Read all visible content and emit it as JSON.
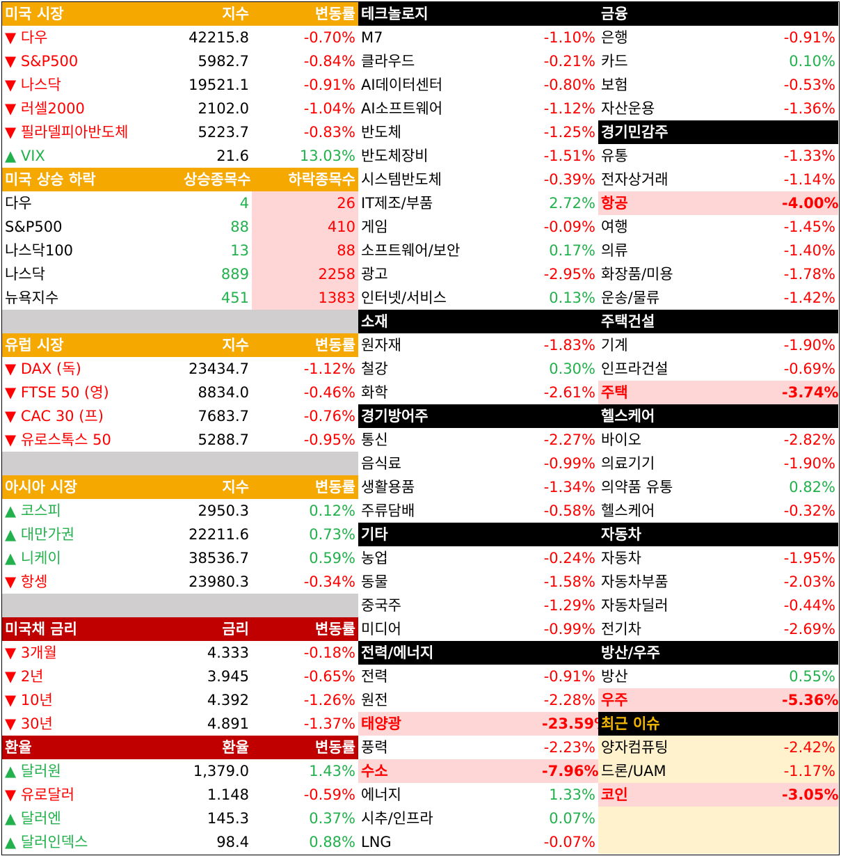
{
  "left": [
    {
      "header": [
        "미국 시장",
        "지수",
        "변동률"
      ],
      "header_color": "#f5a800",
      "header_text_color": "#ffffff",
      "rows": [
        [
          "▼ 다우",
          "42215.8",
          "-0.70%"
        ],
        [
          "▼ S&P500",
          "5982.7",
          "-0.84%"
        ],
        [
          "▼ 나스닥",
          "19521.1",
          "-0.91%"
        ],
        [
          "▼ 러셀2000",
          "2102.0",
          "-1.04%"
        ],
        [
          "▼ 필라델피아반도체",
          "5223.7",
          "-0.83%"
        ],
        [
          "▲ VIX",
          "21.6",
          "13.03%"
        ]
      ]
    },
    {
      "header": [
        "미국 상승 하락",
        "상승종목수",
        "하락종목수"
      ],
      "header_color": "#f5a800",
      "header_text_color": "#ffffff",
      "value_colors": [
        "#000000",
        "#22b14c",
        "#ff0000"
      ],
      "value_backgrounds": [
        "#ffffff",
        "#ffffff",
        "#ffd6d6"
      ],
      "rows": [
        [
          "다우",
          "4",
          "26"
        ],
        [
          "S&P500",
          "88",
          "410"
        ],
        [
          "나스닥100",
          "13",
          "88"
        ],
        [
          "나스닥",
          "889",
          "2258"
        ],
        [
          "뉴욕지수",
          "451",
          "1383"
        ]
      ]
    },
    {
      "header": [
        "유럽 시장",
        "지수",
        "변동률"
      ],
      "header_color": "#f5a800",
      "header_text_color": "#ffffff",
      "rows": [
        [
          "▼ DAX (독)",
          "23434.7",
          "-1.12%"
        ],
        [
          "▼ FTSE 50 (영)",
          "8834.0",
          "-0.46%"
        ],
        [
          "▼ CAC 30 (프)",
          "7683.7",
          "-0.76%"
        ],
        [
          "▼ 유로스톡스 50",
          "5288.7",
          "-0.95%"
        ]
      ]
    },
    {
      "header": [
        "아시아 시장",
        "지수",
        "변동률"
      ],
      "header_color": "#f5a800",
      "header_text_color": "#ffffff",
      "rows": [
        [
          "▲ 코스피",
          "2950.3",
          "0.12%"
        ],
        [
          "▲ 대만가권",
          "22211.6",
          "0.73%"
        ],
        [
          "▲ 니케이",
          "38536.7",
          "0.59%"
        ],
        [
          "▼ 항셍",
          "23980.3",
          "-0.34%"
        ]
      ]
    },
    {
      "header": [
        "미국채 금리",
        "금리",
        "변동률"
      ],
      "header_color": "#c00000",
      "header_text_color": "#ffffff",
      "rows": [
        [
          "▼ 3개월",
          "4.333",
          "-0.18%"
        ],
        [
          "▼ 2년",
          "3.945",
          "-0.65%"
        ],
        [
          "▼ 10년",
          "4.392",
          "-1.26%"
        ],
        [
          "▼ 30년",
          "4.891",
          "-1.37%"
        ]
      ]
    },
    {
      "header": [
        "환율",
        "환율",
        "변동률"
      ],
      "header_color": "#c00000",
      "header_text_color": "#ffffff",
      "rows": [
        [
          "▲ 달러원",
          "1,379.0",
          "1.43%"
        ],
        [
          "▼ 유로달러",
          "1.148",
          "-0.59%"
        ],
        [
          "▲ 달러엔",
          "145.3",
          "0.37%"
        ],
        [
          "▲ 달러인덱스",
          "98.4",
          "0.88%"
        ]
      ]
    }
  ],
  "middle": [
    {
      "header": "테크놀로지",
      "header_color": "#000000",
      "header_text_color": "#ffffff",
      "rows": [
        [
          "M7",
          "-1.10%"
        ],
        [
          "클라우드",
          "-0.21%"
        ],
        [
          "AI데이터센터",
          "-0.80%"
        ],
        [
          "AI소프트웨어",
          "-1.12%"
        ],
        [
          "반도체",
          "-1.25%"
        ],
        [
          "반도체장비",
          "-1.51%"
        ],
        [
          "시스템반도체",
          "-0.39%"
        ],
        [
          "IT제조/부품",
          "2.72%"
        ],
        [
          "게임",
          "-0.09%"
        ],
        [
          "소프트웨어/보안",
          "0.17%"
        ],
        [
          "광고",
          "-2.95%"
        ],
        [
          "인터넷/서비스",
          "0.13%"
        ]
      ]
    },
    {
      "header": "소재",
      "header_color": "#000000",
      "header_text_color": "#ffffff",
      "rows": [
        [
          "원자재",
          "-1.83%"
        ],
        [
          "철강",
          "0.30%"
        ],
        [
          "화학",
          "-2.61%"
        ]
      ]
    },
    {
      "header": "경기방어주",
      "header_color": "#000000",
      "header_text_color": "#ffffff",
      "rows": [
        [
          "통신",
          "-2.27%"
        ],
        [
          "음식료",
          "-0.99%"
        ],
        [
          "생활용품",
          "-1.34%"
        ],
        [
          "주류담배",
          "-0.58%"
        ]
      ]
    },
    {
      "header": "기타",
      "header_color": "#000000",
      "header_text_color": "#ffffff",
      "rows": [
        [
          "농업",
          "-0.24%"
        ],
        [
          "동물",
          "-1.58%"
        ],
        [
          "중국주",
          "-1.29%"
        ],
        [
          "미디어",
          "-0.99%"
        ]
      ]
    },
    {
      "header": "전력/에너지",
      "header_color": "#000000",
      "header_text_color": "#ffffff",
      "rows": [
        [
          "전력",
          "-0.91%"
        ],
        [
          "원전",
          "-2.28%"
        ],
        [
          "태양광",
          "-23.59%"
        ],
        [
          "풍력",
          "-2.23%"
        ],
        [
          "수소",
          "-7.96%"
        ],
        [
          "에너지",
          "1.33%"
        ],
        [
          "시추/인프라",
          "0.07%"
        ],
        [
          "LNG",
          "-0.07%"
        ]
      ]
    }
  ],
  "right": [
    {
      "header": "금융",
      "header_color": "#000000",
      "header_text_color": "#ffffff",
      "rows": [
        [
          "은행",
          "-0.91%"
        ],
        [
          "카드",
          "0.10%"
        ],
        [
          "보험",
          "-0.53%"
        ],
        [
          "자산운용",
          "-1.36%"
        ]
      ]
    },
    {
      "header": "경기민감주",
      "header_color": "#000000",
      "header_text_color": "#ffffff",
      "rows": [
        [
          "유통",
          "-1.33%"
        ],
        [
          "전자상거래",
          "-1.14%"
        ],
        [
          "항공",
          "-4.00%"
        ],
        [
          "여행",
          "-1.45%"
        ],
        [
          "의류",
          "-1.40%"
        ],
        [
          "화장품/미용",
          "-1.78%"
        ],
        [
          "운송/물류",
          "-1.42%"
        ]
      ]
    },
    {
      "header": "주택건설",
      "header_color": "#000000",
      "header_text_color": "#ffffff",
      "rows": [
        [
          "기계",
          "-1.90%"
        ],
        [
          "인프라건설",
          "-0.69%"
        ],
        [
          "주택",
          "-3.74%"
        ]
      ]
    },
    {
      "header": "헬스케어",
      "header_color": "#000000",
      "header_text_color": "#ffffff",
      "rows": [
        [
          "바이오",
          "-2.82%"
        ],
        [
          "의료기기",
          "-1.90%"
        ],
        [
          "의약품 유통",
          "0.82%"
        ],
        [
          "헬스케어",
          "-0.32%"
        ]
      ]
    },
    {
      "header": "자동차",
      "header_color": "#000000",
      "header_text_color": "#ffffff",
      "rows": [
        [
          "자동차",
          "-1.95%"
        ],
        [
          "자동차부품",
          "-2.03%"
        ],
        [
          "자동차딜러",
          "-0.44%"
        ],
        [
          "전기차",
          "-2.69%"
        ]
      ]
    },
    {
      "header": "방산/우주",
      "header_color": "#000000",
      "header_text_color": "#ffffff",
      "rows": [
        [
          "방산",
          "0.55%"
        ],
        [
          "우주",
          "-5.36%"
        ]
      ]
    },
    {
      "header": "최근 이슈",
      "header_color": "#000000",
      "header_text_color": "#f5b800",
      "background": "#fff2cc",
      "rows": [
        [
          "양자컴퓨팅",
          "-2.42%"
        ],
        [
          "드론/UAM",
          "-1.17%"
        ],
        [
          "코인",
          "-3.05%"
        ]
      ]
    }
  ]
}
